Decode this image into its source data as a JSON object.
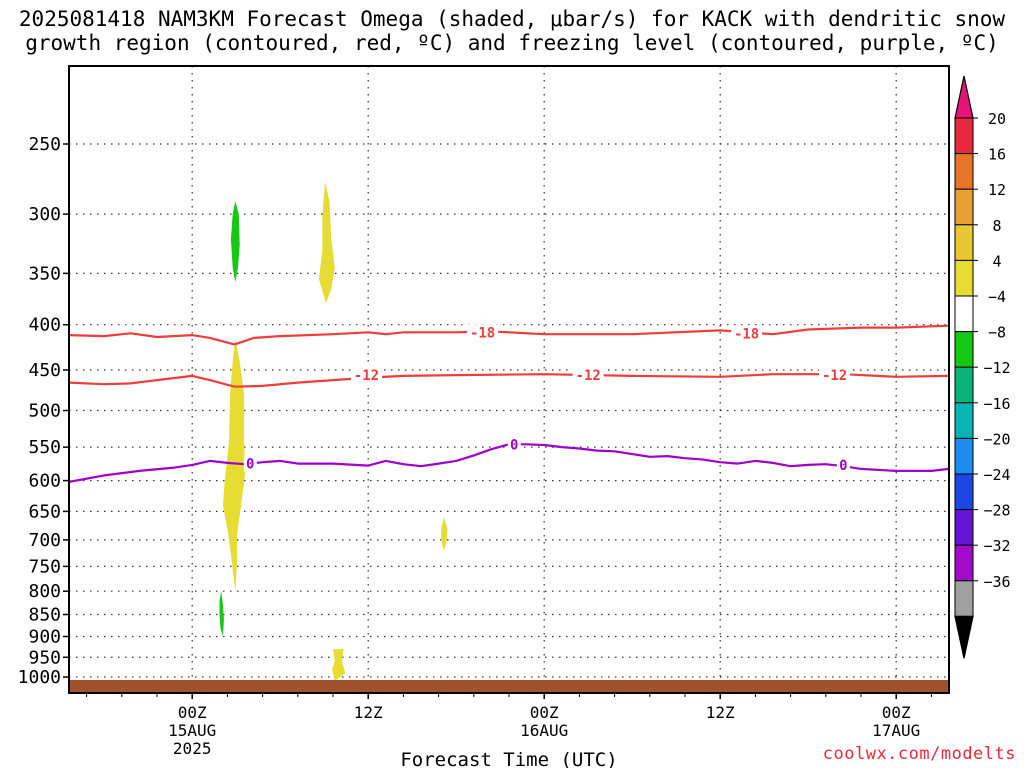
{
  "title_line1": "2025081418 NAM3KM Forecast Omega (shaded, μbar/s) for KACK with dendritic snow",
  "title_line2": "growth region (contoured, red, ºC) and freezing level (contoured, purple, ºC)",
  "credit": "coolwx.com/modelts",
  "chart_data": {
    "type": "contour",
    "title": "2025081418 NAM3KM Forecast Omega (shaded, μbar/s) for KACK with dendritic snow growth region (contoured, red, ºC) and freezing level (contoured, purple, ºC)",
    "xlabel": "Forecast Time (UTC)",
    "ylabel": "",
    "xlim_hours": [
      -7,
      43
    ],
    "ylim": [
      1025,
      200
    ],
    "y_scale": "log-pressure",
    "grid": true,
    "x_ticks": [
      {
        "hour": 0,
        "label": "00Z",
        "sub": "15AUG",
        "sub2": "2025"
      },
      {
        "hour": 10,
        "label": "12Z",
        "sub": "",
        "sub2": ""
      },
      {
        "hour": 20,
        "label": "00Z",
        "sub": "16AUG",
        "sub2": ""
      },
      {
        "hour": 30,
        "label": "12Z",
        "sub": "",
        "sub2": ""
      },
      {
        "hour": 40,
        "label": "00Z",
        "sub": "17AUG",
        "sub2": ""
      }
    ],
    "y_ticks": [
      250,
      300,
      350,
      400,
      450,
      500,
      550,
      600,
      650,
      700,
      750,
      800,
      850,
      900,
      950,
      1000
    ],
    "y_tick_labels": [
      "250",
      "300",
      "350",
      "400",
      "450",
      "500",
      "550",
      "600",
      "650",
      "700",
      "750",
      "800",
      "850",
      "900",
      "950",
      "1000"
    ],
    "colorbar": {
      "levels": [
        20,
        16,
        12,
        8,
        4,
        -4,
        -8,
        -12,
        -16,
        -20,
        -24,
        -28,
        -32,
        -36
      ],
      "labels": [
        "20",
        "16",
        "12",
        "8",
        "4",
        "−4",
        "−8",
        "−12",
        "−16",
        "−20",
        "−24",
        "−28",
        "−32",
        "−36"
      ],
      "colors": [
        "#e8283c",
        "#e8742a",
        "#e8a032",
        "#e8c832",
        "#e6dc32",
        "#ffffff",
        "#14c814",
        "#0ab478",
        "#0ab4b4",
        "#1e8cf0",
        "#1e46e6",
        "#6414d2",
        "#a00ac8",
        "#a0a0a0"
      ],
      "top_triangle": "#e6147a",
      "bottom_triangle": "#000000"
    },
    "contours": [
      {
        "name": "-18",
        "color": "#f03c3c",
        "points": [
          [
            -7,
            411
          ],
          [
            -5,
            412
          ],
          [
            -3.5,
            409
          ],
          [
            -2,
            413
          ],
          [
            0,
            411
          ],
          [
            1,
            414
          ],
          [
            2.4,
            421
          ],
          [
            3.5,
            414
          ],
          [
            5,
            412
          ],
          [
            8,
            410
          ],
          [
            10,
            408
          ],
          [
            11,
            410
          ],
          [
            12,
            408
          ],
          [
            15,
            408
          ],
          [
            17,
            407
          ],
          [
            20,
            410
          ],
          [
            25,
            410
          ],
          [
            30,
            406
          ],
          [
            33,
            410
          ],
          [
            35,
            405
          ],
          [
            38,
            403
          ],
          [
            40,
            403
          ],
          [
            43,
            401
          ]
        ],
        "labels": [
          {
            "x": 16.5,
            "y": 408,
            "text": "-18"
          },
          {
            "x": 31.5,
            "y": 409,
            "text": "-18"
          }
        ]
      },
      {
        "name": "-12",
        "color": "#f03c3c",
        "points": [
          [
            -7,
            465
          ],
          [
            -5,
            467
          ],
          [
            -3.5,
            466
          ],
          [
            -2,
            462
          ],
          [
            0,
            457
          ],
          [
            1,
            462
          ],
          [
            2.4,
            470
          ],
          [
            4,
            469
          ],
          [
            6,
            465
          ],
          [
            8,
            462
          ],
          [
            10,
            459
          ],
          [
            12,
            457
          ],
          [
            15,
            456
          ],
          [
            20,
            455
          ],
          [
            25,
            457
          ],
          [
            30,
            458
          ],
          [
            33,
            455
          ],
          [
            37,
            455
          ],
          [
            40,
            458
          ],
          [
            43,
            457
          ]
        ],
        "labels": [
          {
            "x": 9.9,
            "y": 456,
            "text": "-12"
          },
          {
            "x": 22.5,
            "y": 456,
            "text": "-12"
          },
          {
            "x": 36.5,
            "y": 456,
            "text": "-12"
          }
        ]
      },
      {
        "name": "0",
        "color": "#a000c8",
        "points": [
          [
            -7,
            602
          ],
          [
            -5,
            592
          ],
          [
            -3,
            585
          ],
          [
            -1,
            580
          ],
          [
            0,
            576
          ],
          [
            1,
            570
          ],
          [
            2,
            573
          ],
          [
            3,
            575
          ],
          [
            4,
            572
          ],
          [
            5,
            570
          ],
          [
            6,
            574
          ],
          [
            8,
            574
          ],
          [
            10,
            577
          ],
          [
            11,
            570
          ],
          [
            12,
            575
          ],
          [
            13,
            578
          ],
          [
            14,
            574
          ],
          [
            15,
            570
          ],
          [
            16,
            562
          ],
          [
            17,
            553
          ],
          [
            18,
            546
          ],
          [
            19,
            546
          ],
          [
            20,
            547
          ],
          [
            21,
            550
          ],
          [
            22,
            552
          ],
          [
            23,
            555
          ],
          [
            24,
            556
          ],
          [
            25,
            560
          ],
          [
            26,
            564
          ],
          [
            27,
            563
          ],
          [
            28,
            566
          ],
          [
            29,
            568
          ],
          [
            30,
            572
          ],
          [
            31,
            574
          ],
          [
            32,
            570
          ],
          [
            33,
            573
          ],
          [
            34,
            578
          ],
          [
            35,
            576
          ],
          [
            36,
            575
          ],
          [
            37,
            578
          ],
          [
            38,
            582
          ],
          [
            40,
            585
          ],
          [
            42,
            585
          ],
          [
            43,
            582
          ]
        ],
        "labels": [
          {
            "x": 3.3,
            "y": 574,
            "text": "0"
          },
          {
            "x": 18.3,
            "y": 546,
            "text": "0"
          },
          {
            "x": 37.0,
            "y": 576,
            "text": "0"
          }
        ]
      }
    ],
    "shaded_regions": [
      {
        "value": -6,
        "color": "#14c814",
        "points": [
          [
            2.45,
            290
          ],
          [
            2.65,
            300
          ],
          [
            2.7,
            325
          ],
          [
            2.6,
            345
          ],
          [
            2.45,
            358
          ],
          [
            2.3,
            345
          ],
          [
            2.2,
            320
          ],
          [
            2.3,
            300
          ]
        ]
      },
      {
        "value": 6,
        "color": "#e6dc32",
        "points": [
          [
            7.55,
            276
          ],
          [
            7.8,
            290
          ],
          [
            7.9,
            320
          ],
          [
            8.1,
            345
          ],
          [
            7.9,
            365
          ],
          [
            7.6,
            378
          ],
          [
            7.2,
            355
          ],
          [
            7.4,
            330
          ],
          [
            7.4,
            300
          ]
        ]
      },
      {
        "value": 6,
        "color": "#e6dc32",
        "points": [
          [
            2.45,
            415
          ],
          [
            2.7,
            440
          ],
          [
            2.95,
            480
          ],
          [
            2.95,
            540
          ],
          [
            3.0,
            590
          ],
          [
            2.8,
            635
          ],
          [
            2.55,
            690
          ],
          [
            2.55,
            740
          ],
          [
            2.45,
            800
          ],
          [
            2.25,
            740
          ],
          [
            2.05,
            690
          ],
          [
            1.75,
            640
          ],
          [
            1.85,
            600
          ],
          [
            2.1,
            540
          ],
          [
            2.15,
            480
          ],
          [
            2.3,
            440
          ]
        ]
      },
      {
        "value": 6,
        "color": "#e6dc32",
        "points": [
          [
            14.3,
            660
          ],
          [
            14.5,
            680
          ],
          [
            14.45,
            705
          ],
          [
            14.3,
            720
          ],
          [
            14.15,
            700
          ],
          [
            14.15,
            680
          ]
        ]
      },
      {
        "value": -6,
        "color": "#14c814",
        "points": [
          [
            1.65,
            800
          ],
          [
            1.75,
            830
          ],
          [
            1.8,
            860
          ],
          [
            1.75,
            900
          ],
          [
            1.6,
            880
          ],
          [
            1.55,
            850
          ],
          [
            1.55,
            820
          ]
        ]
      },
      {
        "value": 6,
        "color": "#e6dc32",
        "points": [
          [
            8.0,
            930
          ],
          [
            8.6,
            930
          ],
          [
            8.5,
            960
          ],
          [
            8.7,
            990
          ],
          [
            8.1,
            1010
          ],
          [
            7.95,
            980
          ],
          [
            8.1,
            960
          ]
        ]
      }
    ],
    "ground_color": "#a0522d"
  },
  "axes": {
    "xlabel": "Forecast Time (UTC)"
  }
}
